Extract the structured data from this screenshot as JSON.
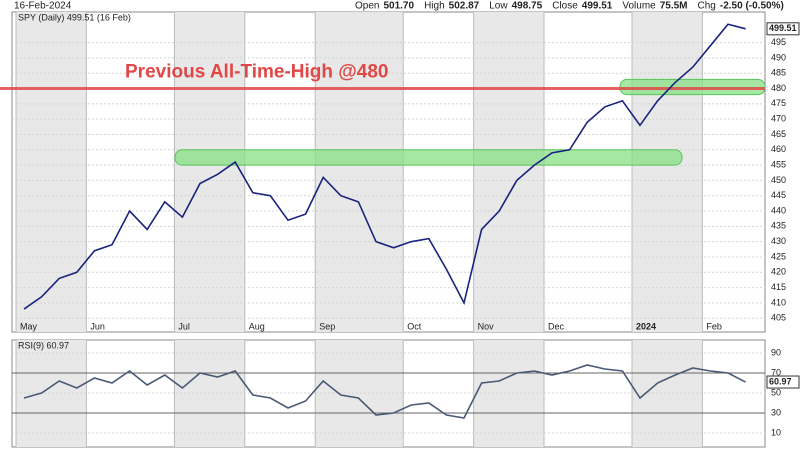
{
  "header": {
    "date": "16-Feb-2024",
    "quote": [
      {
        "label": "Open",
        "value": "501.70"
      },
      {
        "label": "High",
        "value": "502.87"
      },
      {
        "label": "Low",
        "value": "498.75"
      },
      {
        "label": "Close",
        "value": "499.51"
      },
      {
        "label": "Volume",
        "value": "75.5M"
      },
      {
        "label": "Chg",
        "value": "-2.50 (-0.50%)"
      }
    ]
  },
  "chart_data": [
    {
      "type": "line",
      "title": "SPY (Daily) 499.51 (16 Feb)",
      "categories": [
        "May",
        null,
        null,
        null,
        "Jun",
        null,
        null,
        null,
        null,
        "Jul",
        null,
        null,
        null,
        "Aug",
        null,
        null,
        null,
        "Sep",
        null,
        null,
        null,
        null,
        "Oct",
        null,
        null,
        null,
        "Nov",
        null,
        null,
        null,
        "Dec",
        null,
        null,
        null,
        null,
        "2024",
        null,
        null,
        null,
        "Feb",
        null,
        null
      ],
      "series": [
        {
          "name": "SPY",
          "color": "#1a237e",
          "values": [
            408,
            412,
            418,
            420,
            427,
            429,
            440,
            434,
            443,
            438,
            449,
            452,
            456,
            446,
            445,
            437,
            439,
            451,
            445,
            443,
            430,
            428,
            430,
            431,
            421,
            410,
            434,
            440,
            450,
            455,
            459,
            460,
            469,
            474,
            476,
            468,
            476,
            482,
            487,
            494,
            501,
            499.51
          ]
        }
      ],
      "ylim": [
        400.5,
        505
      ],
      "yticks": [
        405,
        410,
        415,
        420,
        425,
        430,
        435,
        440,
        445,
        450,
        455,
        460,
        465,
        470,
        475,
        480,
        485,
        490,
        495
      ],
      "last_value": 499.51,
      "annotations": [
        {
          "text": "Previous All-Time-High @480",
          "value": 480,
          "color": "#e04848"
        }
      ],
      "zones": [
        {
          "from": 455,
          "to": 460,
          "color": "#86e086"
        },
        {
          "from": 478,
          "to": 483,
          "color": "#86e086"
        }
      ]
    },
    {
      "type": "line",
      "title": "RSI(9) 60.97",
      "series": [
        {
          "name": "RSI(9)",
          "color": "#4a5a75",
          "values": [
            45,
            50,
            62,
            55,
            65,
            60,
            72,
            58,
            68,
            55,
            70,
            66,
            72,
            48,
            45,
            35,
            42,
            62,
            48,
            45,
            28,
            30,
            38,
            40,
            28,
            25,
            60,
            62,
            70,
            72,
            68,
            72,
            78,
            74,
            72,
            45,
            60,
            68,
            75,
            72,
            70,
            60.97
          ]
        }
      ],
      "ylim": [
        -4,
        103
      ],
      "yticks": [
        10,
        30,
        50,
        70,
        90
      ],
      "last_value": 60.97,
      "reference_levels": [
        30,
        70
      ]
    }
  ]
}
